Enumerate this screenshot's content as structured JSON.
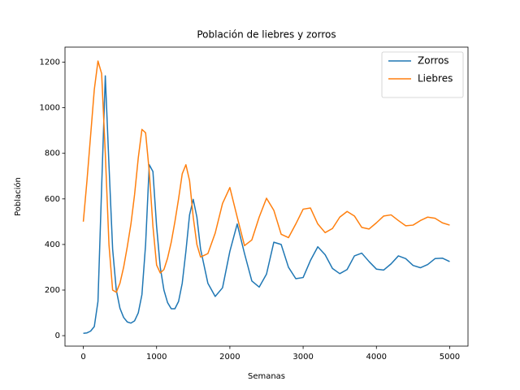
{
  "chart_data": {
    "type": "line",
    "title": "Población de liebres y zorros",
    "xlabel": "Semanas",
    "ylabel": "Población",
    "x": [
      0,
      50,
      100,
      150,
      200,
      250,
      300,
      350,
      400,
      450,
      500,
      550,
      600,
      650,
      700,
      750,
      800,
      850,
      900,
      950,
      1000,
      1050,
      1100,
      1150,
      1200,
      1250,
      1300,
      1350,
      1400,
      1450,
      1500,
      1550,
      1600,
      1700,
      1800,
      1900,
      2000,
      2100,
      2200,
      2300,
      2400,
      2500,
      2600,
      2700,
      2800,
      2900,
      3000,
      3100,
      3200,
      3300,
      3400,
      3500,
      3600,
      3700,
      3800,
      3900,
      4000,
      4100,
      4200,
      4300,
      4400,
      4500,
      4600,
      4700,
      4800,
      4900,
      5000
    ],
    "series": [
      {
        "name": "Zorros",
        "color": "#1f77b4",
        "values": [
          10,
          12,
          20,
          40,
          150,
          650,
          1140,
          750,
          380,
          200,
          120,
          80,
          60,
          55,
          65,
          100,
          180,
          400,
          750,
          720,
          480,
          300,
          200,
          145,
          118,
          118,
          150,
          230,
          370,
          530,
          598,
          520,
          380,
          230,
          172,
          210,
          370,
          490,
          360,
          240,
          213,
          270,
          410,
          400,
          300,
          250,
          255,
          330,
          390,
          355,
          295,
          272,
          290,
          350,
          362,
          325,
          292,
          288,
          315,
          350,
          338,
          308,
          298,
          312,
          338,
          340,
          325
        ]
      },
      {
        "name": "Liebres",
        "color": "#ff7f0e",
        "values": [
          500,
          680,
          880,
          1080,
          1205,
          1150,
          800,
          400,
          200,
          190,
          230,
          300,
          390,
          490,
          620,
          780,
          905,
          890,
          720,
          480,
          310,
          275,
          290,
          340,
          410,
          500,
          600,
          710,
          750,
          680,
          520,
          400,
          345,
          360,
          450,
          580,
          650,
          520,
          395,
          420,
          520,
          603,
          550,
          445,
          430,
          490,
          555,
          560,
          490,
          452,
          470,
          520,
          545,
          525,
          475,
          468,
          495,
          525,
          530,
          505,
          482,
          485,
          505,
          520,
          515,
          495,
          485
        ]
      }
    ],
    "xlim": [
      -250,
      5250
    ],
    "ylim": [
      -46,
      1266
    ],
    "xticks": [
      0,
      1000,
      2000,
      3000,
      4000,
      5000
    ],
    "yticks": [
      0,
      200,
      400,
      600,
      800,
      1000,
      1200
    ],
    "legend": "upper right"
  }
}
